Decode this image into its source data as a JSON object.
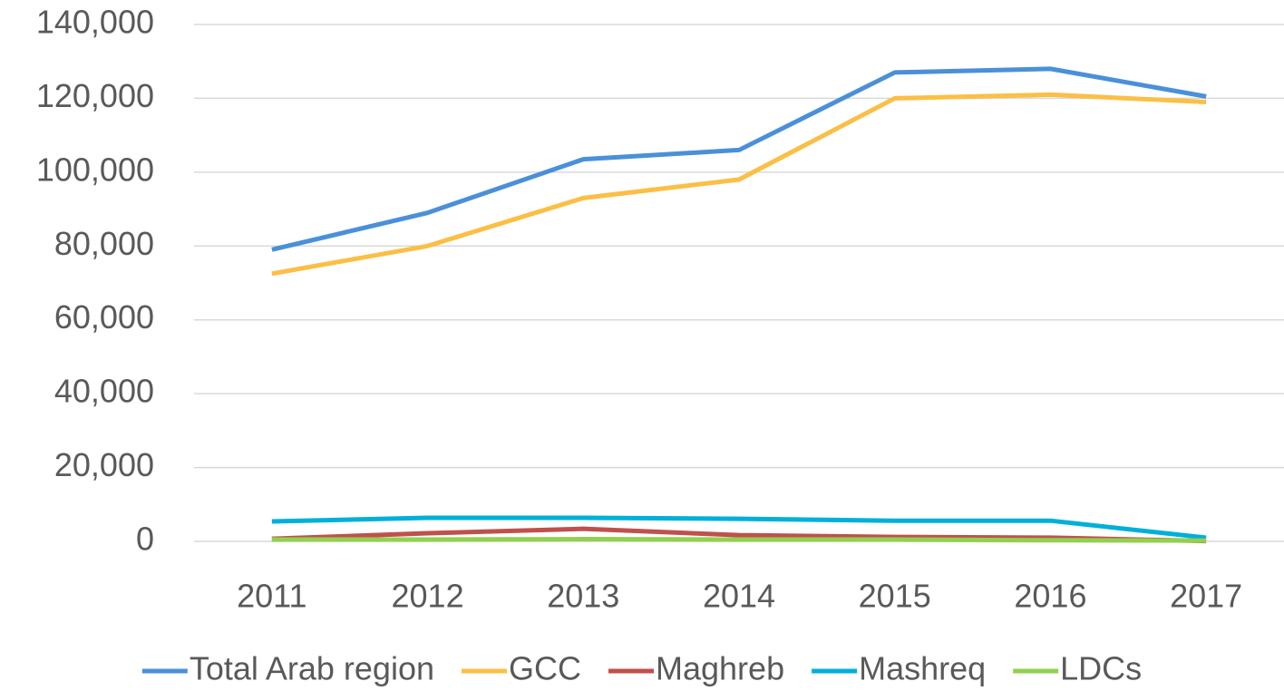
{
  "chart_data": {
    "type": "line",
    "categories": [
      "2011",
      "2012",
      "2013",
      "2014",
      "2015",
      "2016",
      "2017"
    ],
    "series": [
      {
        "name": "Total Arab region",
        "color": "#4a90d9",
        "values": [
          79000,
          89000,
          103500,
          106000,
          127000,
          128000,
          120500
        ]
      },
      {
        "name": "GCC",
        "color": "#fbbf45",
        "values": [
          72500,
          80000,
          93000,
          98000,
          120000,
          121000,
          119000
        ]
      },
      {
        "name": "Maghreb",
        "color": "#c0504d",
        "values": [
          700,
          2200,
          3400,
          1700,
          1200,
          1000,
          100
        ]
      },
      {
        "name": "Mashreq",
        "color": "#00b0d8",
        "values": [
          5400,
          6400,
          6400,
          6100,
          5600,
          5600,
          1000
        ]
      },
      {
        "name": "LDCs",
        "color": "#92d050",
        "values": [
          500,
          500,
          600,
          500,
          500,
          300,
          200
        ]
      }
    ],
    "ylim": [
      0,
      140000
    ],
    "yticks": [
      0,
      {
        "value": 20000,
        "label": "20,000"
      },
      {
        "value": 40000,
        "label": "40,000"
      },
      {
        "value": 60000,
        "label": "60,000"
      },
      {
        "value": 80000,
        "label": "80,000"
      },
      {
        "value": 100000,
        "label": "100,000"
      },
      {
        "value": 120000,
        "label": "120,000"
      },
      {
        "value": 140000,
        "label": "140,000"
      }
    ],
    "grid": true,
    "legend": "bottom"
  }
}
